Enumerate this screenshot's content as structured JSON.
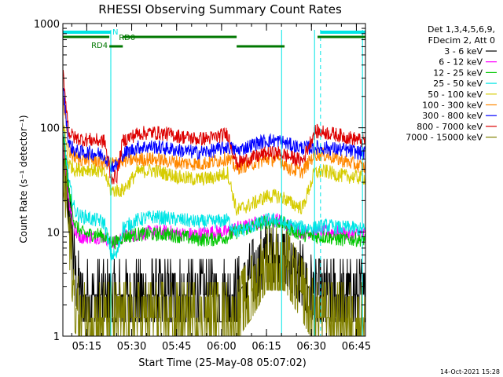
{
  "chart_data": {
    "type": "line",
    "title": "RHESSI Observing Summary Count Rates",
    "xlabel": "Start Time (25-May-08 05:07:02)",
    "ylabel": "Count Rate (s⁻¹ detector⁻¹)",
    "y_scale": "log",
    "ylim": [
      1,
      1000
    ],
    "xlim_minutes_after_start": [
      0,
      101
    ],
    "x_ticks": [
      "05:15",
      "05:30",
      "05:45",
      "06:00",
      "06:15",
      "06:30",
      "06:45"
    ],
    "y_ticks": [
      "1",
      "10",
      "100",
      "1000"
    ],
    "legend_header": [
      "Det 1,3,4,5,6,9,",
      "FDecim 2, Att 0"
    ],
    "legend_position": "right",
    "timestamp": "14-Oct-2021 15:28",
    "flag_labels": {
      "N": "N",
      "RD0": "RD0",
      "RD4": "RD4"
    },
    "flags": [
      {
        "name": "N",
        "color": "#00e5e5",
        "intervals": [
          [
            0,
            16
          ],
          [
            86,
            101
          ]
        ]
      },
      {
        "name": "RD0",
        "color": "#007700",
        "intervals": [
          [
            0,
            15.5
          ],
          [
            20,
            58
          ],
          [
            85,
            101
          ]
        ]
      },
      {
        "name": "RD4",
        "color": "#007700",
        "intervals": [
          [
            15.5,
            20
          ],
          [
            58,
            74
          ]
        ]
      }
    ],
    "night_boundaries_minutes": [
      16,
      86
    ],
    "saa_markers_minutes": [
      16,
      73,
      84,
      100
    ],
    "x": [
      0,
      2,
      4,
      6,
      8,
      10,
      12,
      14,
      16,
      18,
      20,
      25,
      30,
      35,
      40,
      45,
      50,
      55,
      58,
      60,
      64,
      68,
      72,
      74,
      76,
      80,
      84,
      88,
      92,
      96,
      100
    ],
    "series": [
      {
        "name": "3 - 6 keV",
        "color": "#000000",
        "values": [
          60,
          20,
          4,
          2.5,
          2.5,
          2.5,
          2.5,
          2.5,
          2.5,
          2.5,
          2.5,
          2.5,
          2.5,
          2.5,
          2.5,
          2.5,
          2.5,
          2.5,
          2.5,
          3,
          4,
          6,
          6,
          6,
          5,
          3.5,
          2.5,
          2.5,
          2.5,
          2.5,
          2.5
        ]
      },
      {
        "name": "6 - 12 keV",
        "color": "#ff00ff",
        "values": [
          70,
          20,
          10,
          9,
          9,
          9,
          9,
          9,
          8,
          8,
          9,
          9.5,
          10,
          10,
          9.5,
          9.5,
          10,
          10,
          11,
          11,
          12,
          13,
          13,
          12,
          11,
          10,
          10,
          10,
          10,
          9.5,
          9.5
        ]
      },
      {
        "name": "12 - 25 keV",
        "color": "#00c800",
        "values": [
          80,
          25,
          12,
          10,
          9.5,
          9.5,
          9.5,
          9,
          8,
          8,
          9,
          9.5,
          9.5,
          9.5,
          9,
          8.5,
          8.5,
          9,
          10,
          10.5,
          11.5,
          12.5,
          12.5,
          12,
          10.5,
          9.5,
          9,
          9,
          8.5,
          8.5,
          8.5
        ]
      },
      {
        "name": "25 - 50 keV",
        "color": "#00e5e5",
        "values": [
          100,
          30,
          16,
          14,
          14,
          13,
          13,
          12,
          6,
          6,
          11,
          13,
          14,
          13.5,
          13,
          12.5,
          12.5,
          13,
          10,
          10.5,
          11.5,
          13,
          13,
          12,
          11.5,
          11,
          11,
          11.5,
          11,
          11,
          10.5
        ]
      },
      {
        "name": "50 - 100 keV",
        "color": "#d6cc00",
        "values": [
          120,
          45,
          40,
          40,
          40,
          40,
          38,
          36,
          25,
          25,
          25,
          38,
          39,
          36,
          33,
          32,
          33,
          37,
          16,
          17,
          19,
          22,
          22,
          21,
          19,
          17,
          37,
          38,
          35,
          34,
          33
        ]
      },
      {
        "name": "100 - 300 keV",
        "color": "#ff8800",
        "values": [
          200,
          60,
          52,
          50,
          50,
          49,
          48,
          46,
          46,
          46,
          48,
          50,
          50,
          48,
          46,
          45,
          47,
          51,
          41,
          43,
          46,
          50,
          50,
          45,
          40,
          38,
          56,
          55,
          50,
          46,
          42
        ]
      },
      {
        "name": "300 - 800 keV",
        "color": "#0000ff",
        "values": [
          250,
          70,
          60,
          58,
          58,
          57,
          56,
          54,
          43,
          43,
          56,
          65,
          66,
          63,
          60,
          58,
          60,
          66,
          60,
          63,
          70,
          75,
          75,
          72,
          68,
          64,
          65,
          64,
          62,
          60,
          57
        ]
      },
      {
        "name": "800 - 7000 keV",
        "color": "#dd0000",
        "values": [
          350,
          90,
          80,
          78,
          77,
          76,
          75,
          74,
          33,
          34,
          75,
          88,
          90,
          87,
          82,
          78,
          80,
          88,
          45,
          48,
          52,
          57,
          57,
          55,
          52,
          48,
          92,
          90,
          85,
          80,
          75
        ]
      },
      {
        "name": "7000 - 15000 keV",
        "color": "#808000",
        "values": [
          50,
          10,
          2,
          1.5,
          1.5,
          1.5,
          1.5,
          1.5,
          1.5,
          1.5,
          1.5,
          1.5,
          1.5,
          1.5,
          1.5,
          1.5,
          1.5,
          1.5,
          1.5,
          2,
          3,
          5,
          5,
          5,
          4,
          2.5,
          1.5,
          1.5,
          1.5,
          1.5,
          1.5
        ]
      }
    ]
  }
}
